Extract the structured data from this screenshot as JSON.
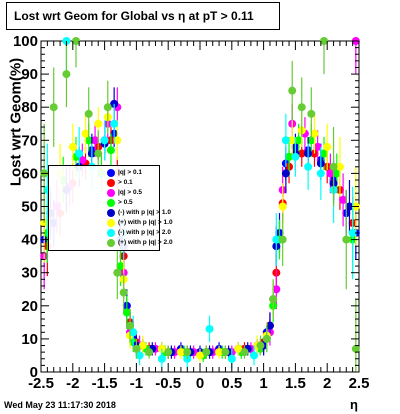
{
  "chart_data": {
    "type": "scatter",
    "title": "Lost wrt Geom for Global vs   η at pT > 0.11",
    "xlabel": "η",
    "ylabel": "Lost wrt Geom(%)",
    "xlim": [
      -2.5,
      2.5
    ],
    "ylim": [
      0,
      100
    ],
    "x_ticks": [
      -2.5,
      -2,
      -1.5,
      -1,
      -0.5,
      0,
      0.5,
      1,
      1.5,
      2,
      2.5
    ],
    "x_tick_labels": [
      "-2.5",
      "-2",
      "-1.5",
      "-1",
      "-0.5",
      "0",
      "0.5",
      "1",
      "1.5",
      "2",
      "2.5"
    ],
    "y_ticks": [
      0,
      10,
      20,
      30,
      40,
      50,
      60,
      70,
      80,
      90,
      100
    ],
    "y_tick_labels": [
      "0",
      "10",
      "20",
      "30",
      "40",
      "50",
      "60",
      "70",
      "80",
      "90",
      "100"
    ],
    "grid": false,
    "legend_placement": "center-left",
    "legend_entries": [
      {
        "text": "|q| > 0.1",
        "color": "#0000ff"
      },
      {
        "text": "> 0.1",
        "color": "#ff0000"
      },
      {
        "text": "|q| > 0.5",
        "color": "#ff00ff"
      },
      {
        "text": "> 0.5",
        "color": "#00ff00"
      },
      {
        "text": "(-) with p   |q| > 1.0",
        "color": "#0000cc"
      },
      {
        "text": "(+) with p   |q| > 1.0",
        "color": "#ffff00"
      },
      {
        "text": "(-) with p   |q| > 2.0",
        "color": "#00ffff"
      },
      {
        "text": "(+) with p   |q| > 2.0",
        "color": "#66cc33"
      }
    ],
    "series": [
      {
        "color": "#0000ff",
        "x": [
          -2.45,
          -2.3,
          -2.1,
          -1.9,
          -1.7,
          -1.5,
          -1.35,
          -1.25,
          -1.15,
          -1.05,
          -0.9,
          -0.6,
          -0.3,
          0.0,
          0.3,
          0.6,
          0.9,
          1.05,
          1.15,
          1.25,
          1.35,
          1.5,
          1.7,
          1.9,
          2.1,
          2.3,
          2.45
        ],
        "y": [
          40,
          45,
          55,
          62,
          67,
          70,
          72,
          40,
          20,
          10,
          8,
          7,
          7,
          6,
          7,
          7,
          8,
          12,
          22,
          42,
          63,
          68,
          67,
          64,
          58,
          48,
          42
        ],
        "err": [
          8,
          7,
          6,
          5,
          5,
          4,
          4,
          6,
          5,
          3,
          2,
          2,
          2,
          2,
          2,
          2,
          2,
          3,
          5,
          6,
          5,
          4,
          4,
          5,
          6,
          7,
          8
        ]
      },
      {
        "color": "#ff0000",
        "x": [
          -2.4,
          -2.2,
          -2.0,
          -1.8,
          -1.6,
          -1.4,
          -1.3,
          -1.2,
          -1.1,
          -1.0,
          -0.8,
          -0.5,
          -0.2,
          0.1,
          0.4,
          0.7,
          1.0,
          1.1,
          1.2,
          1.3,
          1.4,
          1.6,
          1.8,
          2.0,
          2.2,
          2.4
        ],
        "y": [
          38,
          48,
          57,
          63,
          68,
          70,
          60,
          35,
          15,
          9,
          7,
          6,
          6,
          6,
          6,
          7,
          9,
          14,
          30,
          51,
          62,
          66,
          66,
          62,
          55,
          45
        ],
        "err": [
          9,
          7,
          6,
          5,
          4,
          4,
          5,
          6,
          4,
          3,
          2,
          2,
          2,
          2,
          2,
          2,
          3,
          4,
          6,
          6,
          5,
          4,
          4,
          5,
          6,
          8
        ]
      },
      {
        "color": "#ff00ff",
        "x": [
          -2.45,
          -2.25,
          -2.05,
          -1.85,
          -1.65,
          -1.45,
          -1.3,
          -1.2,
          -1.1,
          -0.95,
          -0.7,
          -0.4,
          -0.1,
          0.2,
          0.5,
          0.8,
          1.0,
          1.1,
          1.2,
          1.3,
          1.45,
          1.65,
          1.85,
          2.05,
          2.25,
          2.45
        ],
        "y": [
          35,
          50,
          56,
          64,
          70,
          75,
          80,
          30,
          12,
          8,
          7,
          6,
          6,
          6,
          6,
          7,
          8,
          12,
          25,
          55,
          75,
          72,
          68,
          60,
          52,
          100
        ],
        "err": [
          10,
          8,
          6,
          5,
          5,
          5,
          6,
          6,
          4,
          3,
          2,
          2,
          2,
          2,
          2,
          2,
          3,
          4,
          6,
          7,
          6,
          5,
          5,
          6,
          8,
          10
        ]
      },
      {
        "color": "#00ff00",
        "x": [
          -2.4,
          -2.15,
          -1.95,
          -1.75,
          -1.55,
          -1.4,
          -1.25,
          -1.15,
          -1.05,
          -0.85,
          -0.55,
          -0.25,
          0.05,
          0.35,
          0.65,
          0.95,
          1.05,
          1.15,
          1.25,
          1.4,
          1.55,
          1.75,
          1.95,
          2.15,
          2.4
        ],
        "y": [
          42,
          58,
          65,
          70,
          60,
          67,
          32,
          18,
          9,
          7,
          6,
          6,
          5,
          6,
          6,
          7,
          10,
          20,
          40,
          65,
          70,
          70,
          66,
          60,
          40
        ],
        "err": [
          9,
          7,
          6,
          5,
          6,
          5,
          6,
          5,
          3,
          2,
          2,
          2,
          2,
          2,
          2,
          2,
          3,
          5,
          6,
          6,
          5,
          5,
          5,
          6,
          9
        ]
      },
      {
        "color": "#0000cc",
        "x": [
          -2.35,
          -2.1,
          -1.9,
          -1.7,
          -1.5,
          -1.35,
          -1.2,
          -1.1,
          -1.0,
          -0.75,
          -0.45,
          -0.15,
          0.15,
          0.45,
          0.75,
          1.0,
          1.1,
          1.2,
          1.35,
          1.5,
          1.7,
          1.9,
          2.1,
          2.35
        ],
        "y": [
          48,
          55,
          62,
          66,
          69,
          81,
          38,
          14,
          8,
          7,
          6,
          6,
          6,
          6,
          7,
          8,
          14,
          38,
          60,
          66,
          66,
          63,
          57,
          50
        ],
        "err": [
          8,
          7,
          6,
          5,
          5,
          5,
          6,
          4,
          3,
          2,
          2,
          2,
          2,
          2,
          2,
          3,
          4,
          6,
          6,
          5,
          5,
          5,
          6,
          8
        ]
      },
      {
        "color": "#ffff00",
        "x": [
          -2.45,
          -2.2,
          -2.0,
          -1.8,
          -1.6,
          -1.45,
          -1.3,
          -1.2,
          -1.1,
          -0.9,
          -0.6,
          -0.3,
          0.0,
          0.3,
          0.6,
          0.9,
          1.05,
          1.15,
          1.3,
          1.45,
          1.6,
          1.8,
          2.0,
          2.2,
          2.45
        ],
        "y": [
          45,
          60,
          68,
          72,
          75,
          77,
          70,
          28,
          11,
          8,
          7,
          6,
          5,
          6,
          7,
          8,
          11,
          22,
          50,
          70,
          73,
          72,
          68,
          62,
          50
        ],
        "err": [
          12,
          9,
          7,
          6,
          5,
          5,
          6,
          6,
          4,
          3,
          2,
          2,
          2,
          2,
          2,
          3,
          4,
          6,
          7,
          6,
          5,
          6,
          7,
          9,
          12
        ]
      },
      {
        "color": "#00ffff",
        "x": [
          -2.4,
          -2.1,
          -1.9,
          -1.7,
          -1.5,
          -1.35,
          -1.2,
          -1.05,
          -0.95,
          -0.6,
          -0.2,
          0.15,
          0.5,
          0.85,
          1.05,
          1.2,
          1.35,
          1.5,
          1.7,
          1.9,
          2.1,
          2.4
        ],
        "y": [
          55,
          100,
          66,
          62,
          70,
          75,
          42,
          12,
          5,
          4,
          4,
          13,
          4,
          5,
          10,
          40,
          70,
          65,
          62,
          60,
          55,
          42
        ],
        "err": [
          14,
          10,
          8,
          7,
          6,
          6,
          8,
          5,
          3,
          3,
          3,
          4,
          3,
          3,
          4,
          8,
          8,
          6,
          7,
          8,
          10,
          14
        ]
      },
      {
        "color": "#66cc33",
        "x": [
          -2.45,
          -2.3,
          -2.1,
          -1.95,
          -1.75,
          -1.6,
          -1.45,
          -1.3,
          -1.2,
          -1.1,
          -1.0,
          -0.8,
          -0.5,
          -0.2,
          0.1,
          0.4,
          0.7,
          0.95,
          1.05,
          1.15,
          1.3,
          1.45,
          1.6,
          1.75,
          1.95,
          2.1,
          2.3,
          2.45
        ],
        "y": [
          60,
          80,
          90,
          100,
          78,
          66,
          80,
          30,
          24,
          14,
          7,
          6,
          6,
          6,
          6,
          6,
          6,
          8,
          10,
          22,
          40,
          85,
          80,
          78,
          100,
          62,
          40,
          7
        ],
        "err": [
          15,
          12,
          10,
          8,
          8,
          7,
          8,
          8,
          6,
          5,
          3,
          2,
          2,
          2,
          2,
          2,
          2,
          3,
          4,
          6,
          8,
          9,
          9,
          8,
          10,
          12,
          15,
          15
        ]
      }
    ]
  },
  "timestamp": "Wed May 23 11:17:30 2018"
}
